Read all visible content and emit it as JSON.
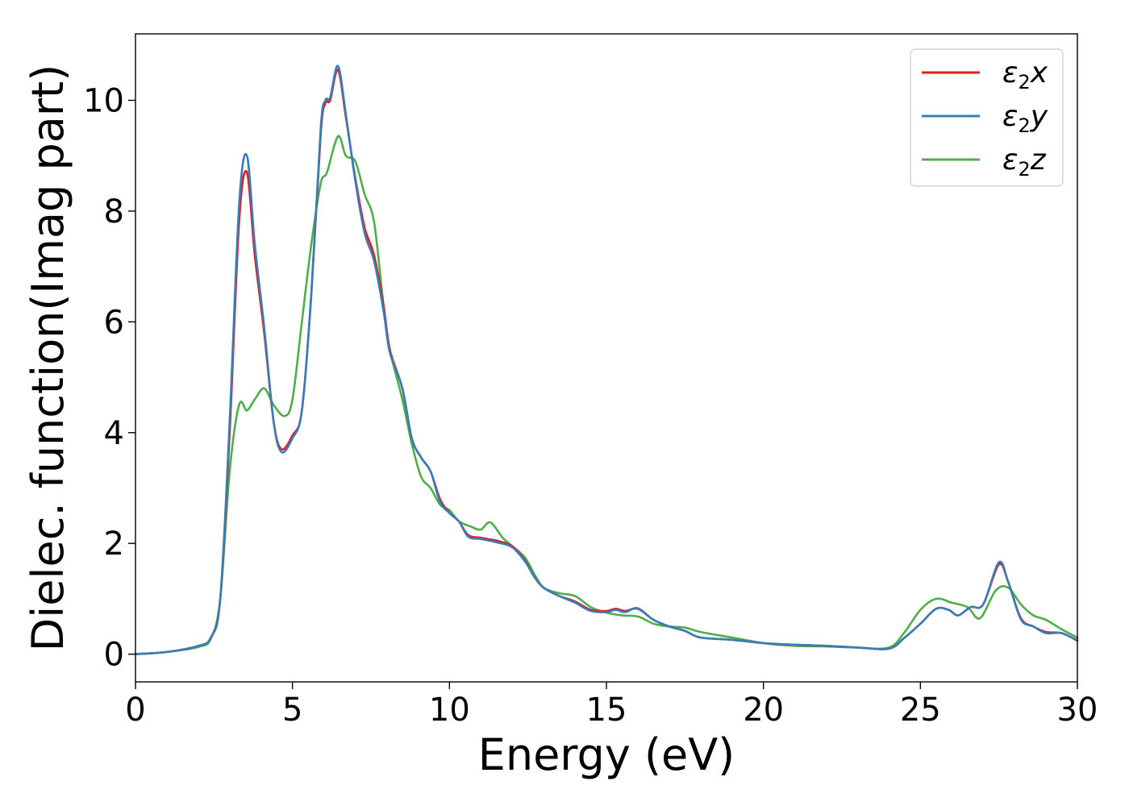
{
  "chart_data": {
    "type": "line",
    "xlabel": "Energy (eV)",
    "ylabel": "Dielec. function(Imag part)",
    "xlim": [
      0,
      30
    ],
    "ylim": [
      -0.5,
      11.2
    ],
    "xticks": [
      0,
      5,
      10,
      15,
      20,
      25,
      30
    ],
    "yticks": [
      0,
      2,
      4,
      6,
      8,
      10
    ],
    "grid": false,
    "legend_position": "top-right",
    "series": [
      {
        "name": "ε₂x",
        "legend_base": "ε",
        "legend_sub": "2",
        "legend_suffix": "x",
        "color": "#e41a1c",
        "points": [
          [
            0,
            0
          ],
          [
            1,
            0.04
          ],
          [
            2,
            0.15
          ],
          [
            2.4,
            0.3
          ],
          [
            2.7,
            1
          ],
          [
            3,
            4
          ],
          [
            3.3,
            7.8
          ],
          [
            3.55,
            8.7
          ],
          [
            3.8,
            7.2
          ],
          [
            4.1,
            5.8
          ],
          [
            4.4,
            4.2
          ],
          [
            4.65,
            3.7
          ],
          [
            5,
            3.95
          ],
          [
            5.3,
            4.4
          ],
          [
            5.6,
            6.5
          ],
          [
            5.9,
            9.4
          ],
          [
            6.05,
            9.95
          ],
          [
            6.2,
            10
          ],
          [
            6.45,
            10.55
          ],
          [
            6.7,
            9.7
          ],
          [
            7,
            8.6
          ],
          [
            7.3,
            7.7
          ],
          [
            7.6,
            7.2
          ],
          [
            7.9,
            6.3
          ],
          [
            8.1,
            5.5
          ],
          [
            8.5,
            4.8
          ],
          [
            8.8,
            3.9
          ],
          [
            9.1,
            3.55
          ],
          [
            9.4,
            3.3
          ],
          [
            9.7,
            2.8
          ],
          [
            10,
            2.55
          ],
          [
            10.3,
            2.4
          ],
          [
            10.6,
            2.15
          ],
          [
            11,
            2.1
          ],
          [
            11.5,
            2.05
          ],
          [
            12,
            1.95
          ],
          [
            12.4,
            1.7
          ],
          [
            12.7,
            1.4
          ],
          [
            13,
            1.2
          ],
          [
            13.5,
            1.05
          ],
          [
            14,
            0.95
          ],
          [
            14.5,
            0.8
          ],
          [
            15,
            0.78
          ],
          [
            15.3,
            0.82
          ],
          [
            15.6,
            0.78
          ],
          [
            16,
            0.82
          ],
          [
            16.5,
            0.62
          ],
          [
            17,
            0.5
          ],
          [
            17.5,
            0.42
          ],
          [
            18,
            0.3
          ],
          [
            19,
            0.26
          ],
          [
            20,
            0.2
          ],
          [
            21,
            0.17
          ],
          [
            22,
            0.15
          ],
          [
            23,
            0.12
          ],
          [
            24,
            0.1
          ],
          [
            24.5,
            0.3
          ],
          [
            25,
            0.55
          ],
          [
            25.5,
            0.82
          ],
          [
            25.9,
            0.8
          ],
          [
            26.2,
            0.7
          ],
          [
            26.6,
            0.85
          ],
          [
            27,
            0.9
          ],
          [
            27.5,
            1.62
          ],
          [
            27.8,
            1.3
          ],
          [
            28.2,
            0.65
          ],
          [
            28.6,
            0.5
          ],
          [
            29,
            0.4
          ],
          [
            29.5,
            0.38
          ],
          [
            30,
            0.25
          ]
        ]
      },
      {
        "name": "ε₂y",
        "legend_base": "ε",
        "legend_sub": "2",
        "legend_suffix": "y",
        "color": "#377eb8",
        "points": [
          [
            0,
            0
          ],
          [
            1,
            0.04
          ],
          [
            2,
            0.15
          ],
          [
            2.4,
            0.3
          ],
          [
            2.7,
            1
          ],
          [
            3,
            4.2
          ],
          [
            3.3,
            8.1
          ],
          [
            3.55,
            9
          ],
          [
            3.8,
            7.4
          ],
          [
            4.1,
            5.9
          ],
          [
            4.4,
            4.2
          ],
          [
            4.65,
            3.65
          ],
          [
            5,
            3.9
          ],
          [
            5.3,
            4.4
          ],
          [
            5.6,
            6.5
          ],
          [
            5.9,
            9.5
          ],
          [
            6.05,
            10
          ],
          [
            6.2,
            10.05
          ],
          [
            6.45,
            10.62
          ],
          [
            6.7,
            9.75
          ],
          [
            7,
            8.55
          ],
          [
            7.3,
            7.6
          ],
          [
            7.6,
            7.1
          ],
          [
            7.9,
            6.2
          ],
          [
            8.1,
            5.45
          ],
          [
            8.5,
            4.8
          ],
          [
            8.8,
            3.9
          ],
          [
            9.1,
            3.55
          ],
          [
            9.4,
            3.3
          ],
          [
            9.7,
            2.75
          ],
          [
            10,
            2.55
          ],
          [
            10.3,
            2.4
          ],
          [
            10.6,
            2.12
          ],
          [
            11,
            2.08
          ],
          [
            11.5,
            2.02
          ],
          [
            12,
            1.93
          ],
          [
            12.4,
            1.68
          ],
          [
            12.7,
            1.4
          ],
          [
            13,
            1.2
          ],
          [
            13.5,
            1.05
          ],
          [
            14,
            0.93
          ],
          [
            14.5,
            0.78
          ],
          [
            15,
            0.76
          ],
          [
            15.3,
            0.8
          ],
          [
            15.6,
            0.76
          ],
          [
            16,
            0.83
          ],
          [
            16.5,
            0.62
          ],
          [
            17,
            0.5
          ],
          [
            17.5,
            0.42
          ],
          [
            18,
            0.3
          ],
          [
            19,
            0.26
          ],
          [
            20,
            0.2
          ],
          [
            21,
            0.17
          ],
          [
            22,
            0.15
          ],
          [
            23,
            0.12
          ],
          [
            24,
            0.1
          ],
          [
            24.5,
            0.3
          ],
          [
            25,
            0.55
          ],
          [
            25.5,
            0.82
          ],
          [
            25.9,
            0.8
          ],
          [
            26.2,
            0.7
          ],
          [
            26.6,
            0.85
          ],
          [
            27,
            0.9
          ],
          [
            27.5,
            1.66
          ],
          [
            27.8,
            1.3
          ],
          [
            28.2,
            0.63
          ],
          [
            28.6,
            0.5
          ],
          [
            29,
            0.38
          ],
          [
            29.5,
            0.38
          ],
          [
            30,
            0.24
          ]
        ]
      },
      {
        "name": "ε₂z",
        "legend_base": "ε",
        "legend_sub": "2",
        "legend_suffix": "z",
        "color": "#4daf4a",
        "points": [
          [
            0,
            0
          ],
          [
            1,
            0.04
          ],
          [
            2,
            0.13
          ],
          [
            2.4,
            0.28
          ],
          [
            2.7,
            1
          ],
          [
            3,
            3.3
          ],
          [
            3.3,
            4.5
          ],
          [
            3.55,
            4.4
          ],
          [
            3.8,
            4.6
          ],
          [
            4.1,
            4.8
          ],
          [
            4.4,
            4.5
          ],
          [
            4.75,
            4.3
          ],
          [
            5,
            4.6
          ],
          [
            5.3,
            6
          ],
          [
            5.6,
            7.4
          ],
          [
            5.9,
            8.5
          ],
          [
            6.1,
            8.7
          ],
          [
            6.45,
            9.35
          ],
          [
            6.7,
            9.0
          ],
          [
            7,
            8.9
          ],
          [
            7.3,
            8.3
          ],
          [
            7.6,
            7.8
          ],
          [
            7.9,
            6.3
          ],
          [
            8.1,
            5.5
          ],
          [
            8.5,
            4.6
          ],
          [
            8.8,
            3.8
          ],
          [
            9.1,
            3.2
          ],
          [
            9.4,
            3
          ],
          [
            9.7,
            2.7
          ],
          [
            10,
            2.6
          ],
          [
            10.3,
            2.4
          ],
          [
            10.7,
            2.3
          ],
          [
            11,
            2.25
          ],
          [
            11.3,
            2.38
          ],
          [
            11.7,
            2.1
          ],
          [
            12,
            1.95
          ],
          [
            12.4,
            1.75
          ],
          [
            12.7,
            1.45
          ],
          [
            13,
            1.2
          ],
          [
            13.5,
            1.1
          ],
          [
            14,
            1.05
          ],
          [
            14.5,
            0.85
          ],
          [
            15,
            0.75
          ],
          [
            15.5,
            0.7
          ],
          [
            16,
            0.68
          ],
          [
            16.5,
            0.55
          ],
          [
            17,
            0.5
          ],
          [
            17.5,
            0.48
          ],
          [
            18,
            0.4
          ],
          [
            19,
            0.3
          ],
          [
            20,
            0.2
          ],
          [
            21,
            0.15
          ],
          [
            22,
            0.14
          ],
          [
            23,
            0.12
          ],
          [
            24,
            0.12
          ],
          [
            24.5,
            0.4
          ],
          [
            25,
            0.8
          ],
          [
            25.5,
            1
          ],
          [
            26,
            0.93
          ],
          [
            26.5,
            0.85
          ],
          [
            26.9,
            0.65
          ],
          [
            27.4,
            1.15
          ],
          [
            27.8,
            1.2
          ],
          [
            28.2,
            0.9
          ],
          [
            28.6,
            0.7
          ],
          [
            29,
            0.62
          ],
          [
            29.5,
            0.45
          ],
          [
            30,
            0.3
          ]
        ]
      }
    ]
  }
}
